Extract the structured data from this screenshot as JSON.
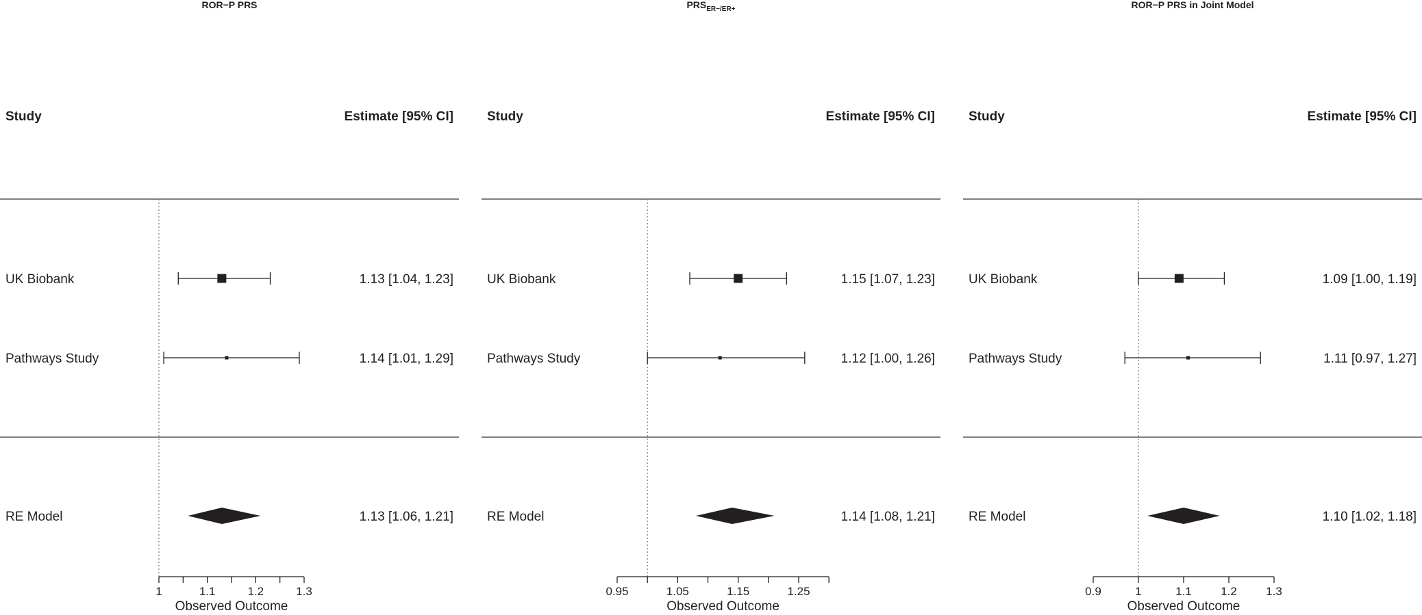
{
  "chart_data": [
    {
      "type": "forest",
      "title": "ROR−P PRS",
      "title_sub": "",
      "col_study": "Study",
      "col_estimate": "Estimate [95% CI]",
      "xlabel": "Observed Outcome",
      "xlim": [
        1,
        1.3
      ],
      "ref_line": 1,
      "ticks": [
        1,
        1.05,
        1.1,
        1.15,
        1.2,
        1.25,
        1.3
      ],
      "tick_labels": [
        "1",
        "",
        "1.1",
        "",
        "1.2",
        "",
        "1.3"
      ],
      "studies": [
        {
          "name": "UK Biobank",
          "est": 1.13,
          "lo": 1.04,
          "hi": 1.23,
          "text": "1.13 [1.04, 1.23]",
          "weight": "large"
        },
        {
          "name": "Pathways Study",
          "est": 1.14,
          "lo": 1.01,
          "hi": 1.29,
          "text": "1.14 [1.01, 1.29]",
          "weight": "small"
        }
      ],
      "summary": {
        "name": "RE Model",
        "est": 1.13,
        "lo": 1.06,
        "hi": 1.21,
        "text": "1.13 [1.06, 1.21]"
      }
    },
    {
      "type": "forest",
      "title": "PRS",
      "title_sub": "ER−/ER+",
      "col_study": "Study",
      "col_estimate": "Estimate [95% CI]",
      "xlabel": "Observed Outcome",
      "xlim": [
        0.95,
        1.3
      ],
      "ref_line": 1,
      "ticks": [
        0.95,
        1.0,
        1.05,
        1.1,
        1.15,
        1.2,
        1.25,
        1.3
      ],
      "tick_labels": [
        "0.95",
        "",
        "1.05",
        "",
        "1.15",
        "",
        "1.25",
        ""
      ],
      "studies": [
        {
          "name": "UK Biobank",
          "est": 1.15,
          "lo": 1.07,
          "hi": 1.23,
          "text": "1.15 [1.07, 1.23]",
          "weight": "large"
        },
        {
          "name": "Pathways Study",
          "est": 1.12,
          "lo": 1.0,
          "hi": 1.26,
          "text": "1.12 [1.00, 1.26]",
          "weight": "small"
        }
      ],
      "summary": {
        "name": "RE Model",
        "est": 1.14,
        "lo": 1.08,
        "hi": 1.21,
        "text": "1.14 [1.08, 1.21]"
      }
    },
    {
      "type": "forest",
      "title": "ROR−P PRS in Joint Model",
      "title_sub": "",
      "col_study": "Study",
      "col_estimate": "Estimate [95% CI]",
      "xlabel": "Observed Outcome",
      "xlim": [
        0.9,
        1.3
      ],
      "ref_line": 1,
      "ticks": [
        0.9,
        1.0,
        1.1,
        1.2,
        1.3
      ],
      "tick_labels": [
        "0.9",
        "1",
        "1.1",
        "1.2",
        "1.3"
      ],
      "studies": [
        {
          "name": "UK Biobank",
          "est": 1.09,
          "lo": 1.0,
          "hi": 1.19,
          "text": "1.09 [1.00, 1.19]",
          "weight": "large"
        },
        {
          "name": "Pathways Study",
          "est": 1.11,
          "lo": 0.97,
          "hi": 1.27,
          "text": "1.11 [0.97, 1.27]",
          "weight": "small"
        }
      ],
      "summary": {
        "name": "RE Model",
        "est": 1.1,
        "lo": 1.02,
        "hi": 1.18,
        "text": "1.10 [1.02, 1.18]"
      }
    }
  ],
  "colors": {
    "ink": "#231f20",
    "rule": "#555555",
    "ref": "#777777"
  }
}
